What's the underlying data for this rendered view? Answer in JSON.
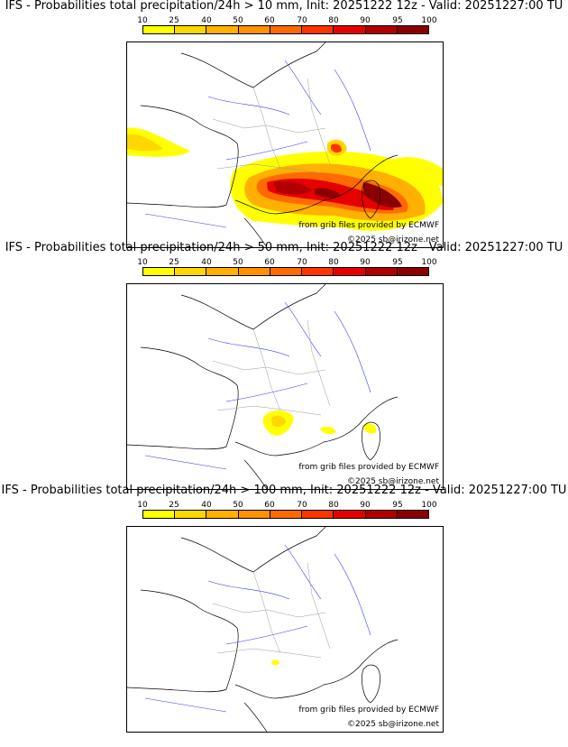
{
  "panels": [
    {
      "title": "IFS - Probabilities total precipitation/24h > 10 mm, Init: 20251222 12z - Valid: 20251227:00 TU",
      "credit_source": "from grib files provided by ECMWF",
      "credit_copyright": "©2025 sb@irizone.net"
    },
    {
      "title": "IFS - Probabilities total precipitation/24h > 50 mm, Init: 20251222 12z - Valid: 20251227:00 TU",
      "credit_source": "from grib files provided by ECMWF",
      "credit_copyright": "©2025 sb@irizone.net"
    },
    {
      "title": "IFS - Probabilities total precipitation/24h > 100 mm, Init: 20251222 12z - Valid: 20251227:00 TU",
      "credit_source": "from grib files provided by ECMWF",
      "credit_copyright": "©2025 sb@irizone.net"
    }
  ],
  "colorbar": {
    "ticks": [
      "10",
      "25",
      "40",
      "50",
      "60",
      "70",
      "80",
      "90",
      "95",
      "100"
    ],
    "colors": [
      "#ffff00",
      "#ffd700",
      "#ffb000",
      "#ff9000",
      "#ff6a00",
      "#ff3500",
      "#e60000",
      "#b00000",
      "#8a0000",
      "#5c0000"
    ]
  }
}
